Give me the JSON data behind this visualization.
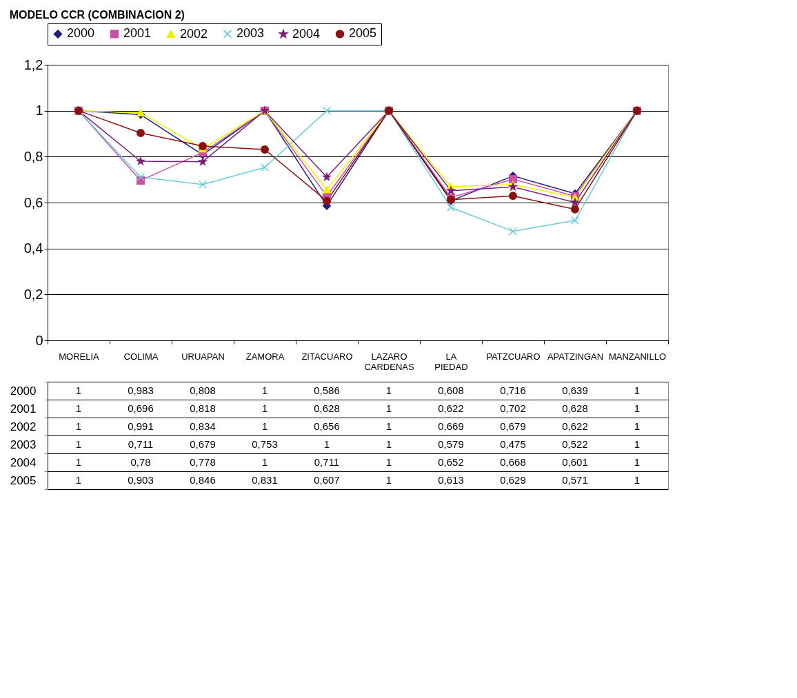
{
  "chart_data": {
    "type": "line",
    "title": "MODELO CCR (COMBINACION 2)",
    "categories": [
      "MORELIA",
      "COLIMA",
      "URUAPAN",
      "ZAMORA",
      "ZITACUARO",
      "LAZARO CARDENAS",
      "LA PIEDAD",
      "PATZCUARO",
      "APATZINGAN",
      "MANZANILLO"
    ],
    "series": [
      {
        "name": "2000",
        "color": "#1f1f7a",
        "marker": "diamond",
        "values": [
          1,
          0.983,
          0.808,
          1,
          0.586,
          1,
          0.608,
          0.716,
          0.639,
          1
        ],
        "value_labels": [
          "1",
          "0,983",
          "0,808",
          "1",
          "0,586",
          "1",
          "0,608",
          "0,716",
          "0,639",
          "1"
        ]
      },
      {
        "name": "2001",
        "color": "#cc4fa6",
        "marker": "square",
        "values": [
          1,
          0.696,
          0.818,
          1,
          0.628,
          1,
          0.622,
          0.702,
          0.628,
          1
        ],
        "value_labels": [
          "1",
          "0,696",
          "0,818",
          "1",
          "0,628",
          "1",
          "0,622",
          "0,702",
          "0,628",
          "1"
        ]
      },
      {
        "name": "2002",
        "color": "#f0f000",
        "marker": "triangle",
        "values": [
          1,
          0.991,
          0.834,
          1,
          0.656,
          1,
          0.669,
          0.679,
          0.622,
          1
        ],
        "value_labels": [
          "1",
          "0,991",
          "0,834",
          "1",
          "0,656",
          "1",
          "0,669",
          "0,679",
          "0,622",
          "1"
        ]
      },
      {
        "name": "2003",
        "color": "#66ccdd",
        "marker": "cross",
        "values": [
          1,
          0.711,
          0.679,
          0.753,
          1,
          1,
          0.579,
          0.475,
          0.522,
          1
        ],
        "value_labels": [
          "1",
          "0,711",
          "0,679",
          "0,753",
          "1",
          "1",
          "0,579",
          "0,475",
          "0,522",
          "1"
        ]
      },
      {
        "name": "2004",
        "color": "#7a1f7a",
        "marker": "star",
        "values": [
          1,
          0.78,
          0.778,
          1,
          0.711,
          1,
          0.652,
          0.668,
          0.601,
          1
        ],
        "value_labels": [
          "1",
          "0,78",
          "0,778",
          "1",
          "0,711",
          "1",
          "0,652",
          "0,668",
          "0,601",
          "1"
        ]
      },
      {
        "name": "2005",
        "color": "#8b1010",
        "marker": "circle",
        "values": [
          1,
          0.903,
          0.846,
          0.831,
          0.607,
          1,
          0.613,
          0.629,
          0.571,
          1
        ],
        "value_labels": [
          "1",
          "0,903",
          "0,846",
          "0,831",
          "0,607",
          "1",
          "0,613",
          "0,629",
          "0,571",
          "1"
        ]
      }
    ],
    "ylim": [
      0,
      1.2
    ],
    "yticks": [
      0,
      {
        "value": 0.2,
        "label": "0,2"
      },
      {
        "value": 0.4,
        "label": "0,4"
      },
      {
        "value": 0.6,
        "label": "0,6"
      },
      {
        "value": 0.8,
        "label": "0,8"
      },
      1,
      {
        "value": 1.2,
        "label": "1,2"
      }
    ],
    "grid": "y",
    "legend": "top"
  }
}
